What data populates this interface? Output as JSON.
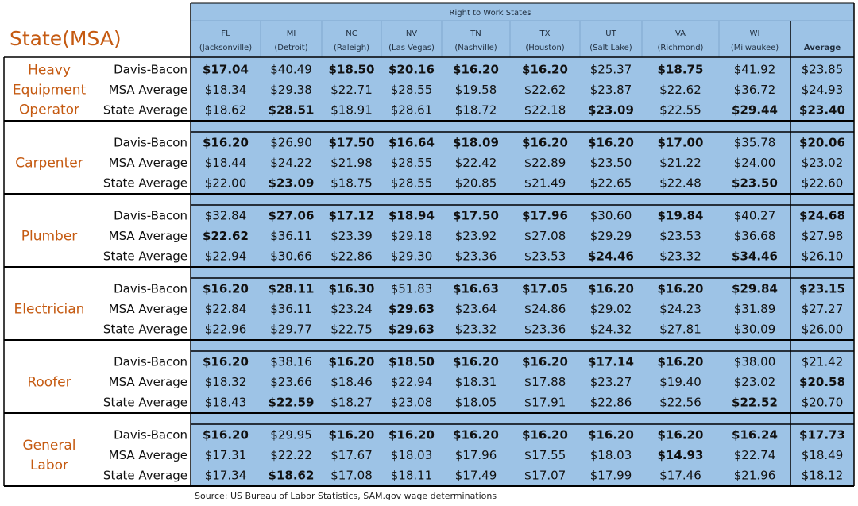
{
  "title": "State(MSA)",
  "header": {
    "caption": "Right to Work States",
    "columns": [
      {
        "state": "FL",
        "msa": "(Jacksonville)"
      },
      {
        "state": "MI",
        "msa": "(Detroit)"
      },
      {
        "state": "NC",
        "msa": "(Raleigh)"
      },
      {
        "state": "NV",
        "msa": "(Las Vegas)"
      },
      {
        "state": "TN",
        "msa": "(Nashville)"
      },
      {
        "state": "TX",
        "msa": "(Houston)"
      },
      {
        "state": "UT",
        "msa": "(Salt Lake)"
      },
      {
        "state": "VA",
        "msa": "(Richmond)"
      },
      {
        "state": "WI",
        "msa": "(Milwaukee)"
      },
      {
        "state": "Average"
      }
    ]
  },
  "groups": [
    {
      "occupation": [
        "Heavy",
        "Equipment",
        "Operator"
      ],
      "rows": [
        {
          "label": "Davis-Bacon",
          "cells": [
            "$17.04",
            "$40.49",
            "$18.50",
            "$20.16",
            "$16.20",
            "$16.20",
            "$25.37",
            "$18.75",
            "$41.92",
            "$23.85"
          ],
          "bold": [
            0,
            2,
            3,
            4,
            5,
            7
          ],
          "red": [
            4,
            5
          ]
        },
        {
          "label": "MSA Average",
          "cells": [
            "$18.34",
            "$29.38",
            "$22.71",
            "$28.55",
            "$19.58",
            "$22.62",
            "$23.87",
            "$22.62",
            "$36.72",
            "$24.93"
          ],
          "bold": [],
          "red": []
        },
        {
          "label": "State Average",
          "cells": [
            "$18.62",
            "$28.51",
            "$18.91",
            "$28.61",
            "$18.72",
            "$22.18",
            "$23.09",
            "$22.55",
            "$29.44",
            "$23.40"
          ],
          "bold": [
            1,
            6,
            8,
            9
          ],
          "red": []
        }
      ]
    },
    {
      "occupation": [
        "Carpenter"
      ],
      "rows": [
        {
          "label": "Davis-Bacon",
          "cells": [
            "$16.20",
            "$26.90",
            "$17.50",
            "$16.64",
            "$18.09",
            "$16.20",
            "$16.20",
            "$17.00",
            "$35.78",
            "$20.06"
          ],
          "bold": [
            0,
            2,
            3,
            4,
            5,
            6,
            7,
            9
          ],
          "red": [
            0,
            5,
            6
          ]
        },
        {
          "label": "MSA Average",
          "cells": [
            "$18.44",
            "$24.22",
            "$21.98",
            "$28.55",
            "$22.42",
            "$22.89",
            "$23.50",
            "$21.22",
            "$24.00",
            "$23.02"
          ],
          "bold": [],
          "red": []
        },
        {
          "label": "State Average",
          "cells": [
            "$22.00",
            "$23.09",
            "$18.75",
            "$28.55",
            "$20.85",
            "$21.49",
            "$22.65",
            "$22.48",
            "$23.50",
            "$22.60"
          ],
          "bold": [
            1,
            8
          ],
          "red": []
        }
      ]
    },
    {
      "occupation": [
        "Plumber"
      ],
      "rows": [
        {
          "label": "Davis-Bacon",
          "cells": [
            "$32.84",
            "$27.06",
            "$17.12",
            "$18.94",
            "$17.50",
            "$17.96",
            "$30.60",
            "$19.84",
            "$40.27",
            "$24.68"
          ],
          "bold": [
            1,
            2,
            3,
            4,
            5,
            7,
            9
          ],
          "red": []
        },
        {
          "label": "MSA Average",
          "cells": [
            "$22.62",
            "$36.11",
            "$23.39",
            "$29.18",
            "$23.92",
            "$27.08",
            "$29.29",
            "$23.53",
            "$36.68",
            "$27.98"
          ],
          "bold": [
            0
          ],
          "red": []
        },
        {
          "label": "State Average",
          "cells": [
            "$22.94",
            "$30.66",
            "$22.86",
            "$29.30",
            "$23.36",
            "$23.53",
            "$24.46",
            "$23.32",
            "$34.46",
            "$26.10"
          ],
          "bold": [
            6,
            8
          ],
          "red": []
        }
      ]
    },
    {
      "occupation": [
        "Electrician"
      ],
      "rows": [
        {
          "label": "Davis-Bacon",
          "cells": [
            "$16.20",
            "$28.11",
            "$16.30",
            "$51.83",
            "$16.63",
            "$17.05",
            "$16.20",
            "$16.20",
            "$29.84",
            "$23.15"
          ],
          "bold": [
            0,
            1,
            2,
            4,
            5,
            6,
            7,
            8,
            9
          ],
          "red": [
            0,
            6,
            7
          ]
        },
        {
          "label": "MSA Average",
          "cells": [
            "$22.84",
            "$36.11",
            "$23.24",
            "$29.63",
            "$23.64",
            "$24.86",
            "$29.02",
            "$24.23",
            "$31.89",
            "$27.27"
          ],
          "bold": [
            3
          ],
          "red": []
        },
        {
          "label": "State Average",
          "cells": [
            "$22.96",
            "$29.77",
            "$22.75",
            "$29.63",
            "$23.32",
            "$23.36",
            "$24.32",
            "$27.81",
            "$30.09",
            "$26.00"
          ],
          "bold": [
            3
          ],
          "red": []
        }
      ]
    },
    {
      "occupation": [
        "Roofer"
      ],
      "rows": [
        {
          "label": "Davis-Bacon",
          "cells": [
            "$16.20",
            "$38.16",
            "$16.20",
            "$18.50",
            "$16.20",
            "$16.20",
            "$17.14",
            "$16.20",
            "$38.00",
            "$21.42"
          ],
          "bold": [
            0,
            2,
            3,
            4,
            5,
            6,
            7
          ],
          "red": [
            0,
            2,
            4,
            5,
            7
          ]
        },
        {
          "label": "MSA Average",
          "cells": [
            "$18.32",
            "$23.66",
            "$18.46",
            "$22.94",
            "$18.31",
            "$17.88",
            "$23.27",
            "$19.40",
            "$23.02",
            "$20.58"
          ],
          "bold": [
            9
          ],
          "red": []
        },
        {
          "label": "State Average",
          "cells": [
            "$18.43",
            "$22.59",
            "$18.27",
            "$23.08",
            "$18.05",
            "$17.91",
            "$22.86",
            "$22.56",
            "$22.52",
            "$20.70"
          ],
          "bold": [
            1,
            8
          ],
          "red": []
        }
      ]
    },
    {
      "occupation": [
        "General",
        "Labor"
      ],
      "rows": [
        {
          "label": "Davis-Bacon",
          "cells": [
            "$16.20",
            "$29.95",
            "$16.20",
            "$16.20",
            "$16.20",
            "$16.20",
            "$16.20",
            "$16.20",
            "$16.24",
            "$17.73"
          ],
          "bold": [
            0,
            2,
            3,
            4,
            5,
            6,
            7,
            8,
            9
          ],
          "red": [
            0,
            2,
            3,
            4,
            5,
            6,
            7
          ]
        },
        {
          "label": "MSA Average",
          "cells": [
            "$17.31",
            "$22.22",
            "$17.67",
            "$18.03",
            "$17.96",
            "$17.55",
            "$18.03",
            "$14.93",
            "$22.74",
            "$18.49"
          ],
          "bold": [
            7
          ],
          "red": []
        },
        {
          "label": "State Average",
          "cells": [
            "$17.34",
            "$18.62",
            "$17.08",
            "$18.11",
            "$17.49",
            "$17.07",
            "$17.99",
            "$17.46",
            "$21.96",
            "$18.12"
          ],
          "bold": [
            1
          ],
          "red": []
        }
      ]
    }
  ],
  "source": "Source: US Bureau of Labor Statistics, SAM.gov wage determinations"
}
